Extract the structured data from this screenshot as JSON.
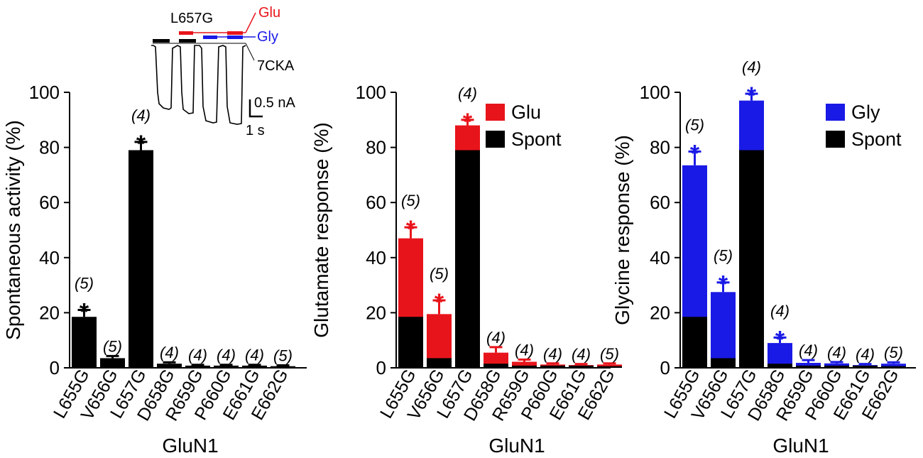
{
  "colors": {
    "spont": "#000000",
    "glu": "#e8141b",
    "gly": "#1a1ae6",
    "axis": "#000000"
  },
  "chart_data": [
    {
      "type": "bar",
      "title": "",
      "xlabel": "GluN1",
      "ylabel": "Spontaneous activity   (%)",
      "ylim": [
        0,
        100
      ],
      "yticks": [
        "0",
        "20",
        "40",
        "60",
        "80",
        "100"
      ],
      "categories": [
        "L655G",
        "V656G",
        "L657G",
        "D658G",
        "R659G",
        "P660G",
        "E661G",
        "E662G"
      ],
      "series": [
        {
          "name": "Spont",
          "color": "spont",
          "values": [
            18.5,
            3.5,
            79,
            1.5,
            0.8,
            0.8,
            0.8,
            0.6
          ],
          "errors": [
            2.5,
            0.8,
            3,
            0.5,
            0.3,
            0.3,
            0.3,
            0.3
          ]
        }
      ],
      "n_labels": [
        "(5)",
        "(5)",
        "(4)",
        "(4)",
        "(4)",
        "(4)",
        "(4)",
        "(5)"
      ],
      "significance": [
        "*",
        "",
        "*",
        "",
        "",
        "",
        "",
        ""
      ],
      "star_color": "spont",
      "inset": {
        "mutant": "L657G",
        "glu_label": "Glu",
        "gly_label": "Gly",
        "antagonist_label": "7CKA",
        "current_scale": "0.5 nA",
        "time_scale": "1 s"
      }
    },
    {
      "type": "bar",
      "title": "",
      "xlabel": "GluN1",
      "ylabel": "Glutamate response   (%)",
      "ylim": [
        0,
        100
      ],
      "yticks": [
        "0",
        "20",
        "40",
        "60",
        "80",
        "100"
      ],
      "categories": [
        "L655G",
        "V656G",
        "L657G",
        "D658G",
        "R659G",
        "P660G",
        "E661G",
        "E662G"
      ],
      "series": [
        {
          "name": "Spont",
          "color": "spont",
          "values": [
            18.5,
            3.5,
            79,
            1.5,
            0.8,
            0.8,
            0.8,
            0.6
          ]
        },
        {
          "name": "Glu",
          "color": "glu",
          "values": [
            47,
            19.5,
            88,
            5.5,
            2.2,
            1.2,
            1.0,
            1.2
          ],
          "errors": [
            4,
            5,
            2,
            2,
            0.8,
            0.4,
            0.4,
            0.4
          ]
        }
      ],
      "legend": [
        "Glu",
        "Spont"
      ],
      "n_labels": [
        "(5)",
        "(5)",
        "(4)",
        "(4)",
        "(4)",
        "(4)",
        "(4)",
        "(5)"
      ],
      "significance": [
        "*",
        "*",
        "*",
        "",
        "",
        "",
        "",
        ""
      ],
      "star_color": "glu"
    },
    {
      "type": "bar",
      "title": "",
      "xlabel": "GluN1",
      "ylabel": "Glycine response   (%)",
      "ylim": [
        0,
        100
      ],
      "yticks": [
        "0",
        "20",
        "40",
        "60",
        "80",
        "100"
      ],
      "categories": [
        "L655G",
        "V656G",
        "L657G",
        "D658G",
        "R659G",
        "P660G",
        "E661G",
        "E662G"
      ],
      "series": [
        {
          "name": "Spont",
          "color": "spont",
          "values": [
            18.5,
            3.5,
            79,
            1.5,
            0.8,
            0.8,
            0.8,
            0.6
          ]
        },
        {
          "name": "Gly",
          "color": "gly",
          "values": [
            73.5,
            27.5,
            97,
            9,
            1.8,
            1.6,
            1.0,
            1.5
          ],
          "errors": [
            5,
            3.5,
            2.5,
            2,
            1,
            0.5,
            0.4,
            0.5
          ]
        }
      ],
      "legend": [
        "Gly",
        "Spont"
      ],
      "n_labels": [
        "(5)",
        "(5)",
        "(4)",
        "(4)",
        "(4)",
        "(4)",
        "(4)",
        "(5)"
      ],
      "significance": [
        "*",
        "*",
        "*",
        "*",
        "",
        "",
        "",
        ""
      ],
      "star_color": "gly"
    }
  ]
}
